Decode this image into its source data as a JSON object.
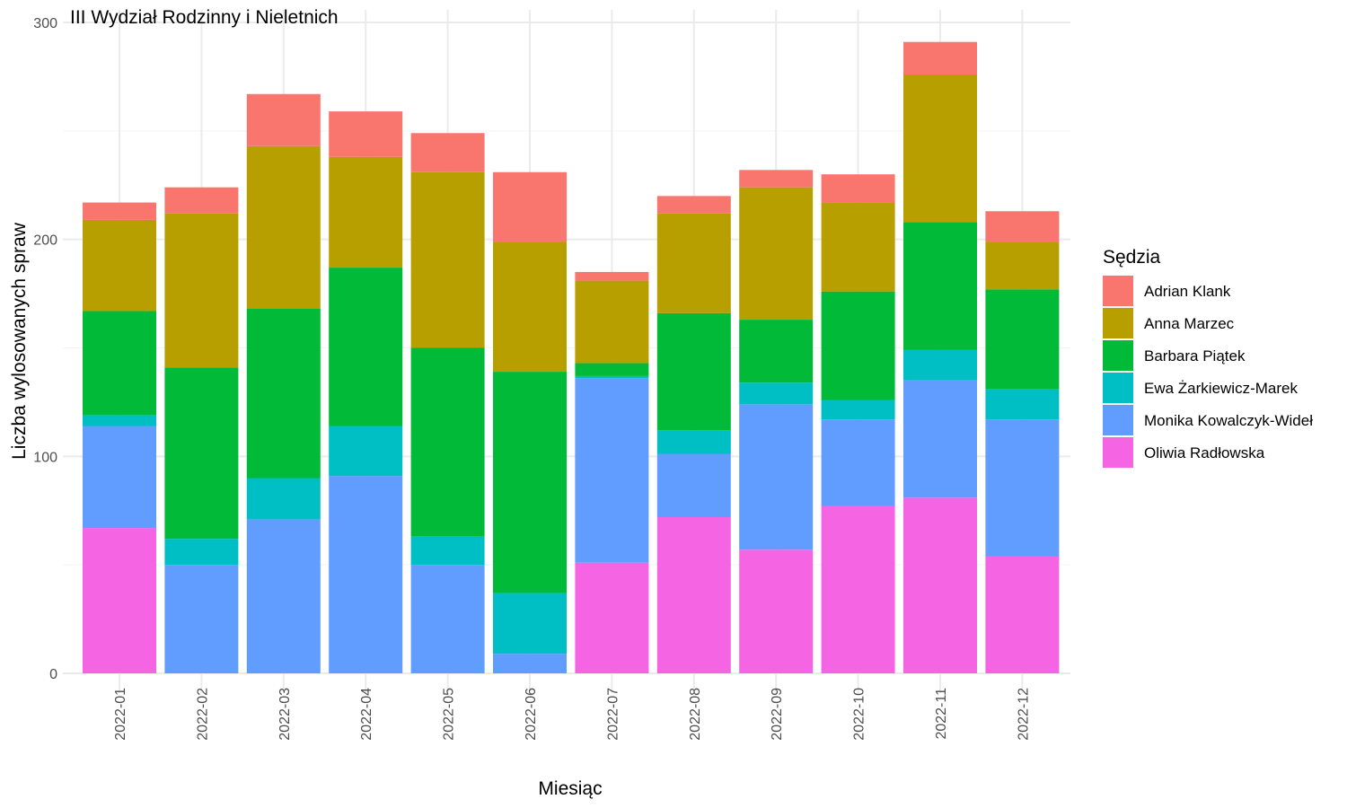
{
  "chart_data": {
    "type": "bar",
    "stacked": true,
    "title": "III Wydział Rodzinny i Nieletnich",
    "xlabel": "Miesiąc",
    "ylabel": "Liczba wylosowanych spraw",
    "ylim": [
      0,
      300
    ],
    "yticks": [
      "0",
      "100",
      "200",
      "300"
    ],
    "grid": true,
    "legend_title": "Sędzia",
    "legend_position": "right",
    "categories": [
      "2022-01",
      "2022-02",
      "2022-03",
      "2022-04",
      "2022-05",
      "2022-06",
      "2022-07",
      "2022-08",
      "2022-09",
      "2022-10",
      "2022-11",
      "2022-12"
    ],
    "series": [
      {
        "name": "Adrian Klank",
        "color": "#F8766D",
        "values": [
          8,
          12,
          24,
          21,
          18,
          32,
          4,
          8,
          8,
          13,
          15,
          14
        ]
      },
      {
        "name": "Anna Marzec",
        "color": "#B79F00",
        "values": [
          42,
          71,
          75,
          51,
          81,
          60,
          38,
          46,
          61,
          41,
          68,
          22
        ]
      },
      {
        "name": "Barbara Piątek",
        "color": "#00BA38",
        "values": [
          48,
          79,
          78,
          73,
          87,
          102,
          6,
          54,
          29,
          50,
          59,
          46
        ]
      },
      {
        "name": "Ewa Żarkiewicz-Marek",
        "color": "#00BFC4",
        "values": [
          5,
          12,
          19,
          23,
          13,
          28,
          1,
          11,
          10,
          9,
          14,
          14
        ]
      },
      {
        "name": "Monika Kowalczyk-Wideł",
        "color": "#619CFF",
        "values": [
          47,
          50,
          71,
          91,
          50,
          9,
          85,
          29,
          67,
          40,
          54,
          63
        ]
      },
      {
        "name": "Oliwia Radłowska",
        "color": "#F564E3",
        "values": [
          67,
          0,
          0,
          0,
          0,
          0,
          51,
          72,
          57,
          77,
          81,
          54
        ]
      }
    ]
  }
}
